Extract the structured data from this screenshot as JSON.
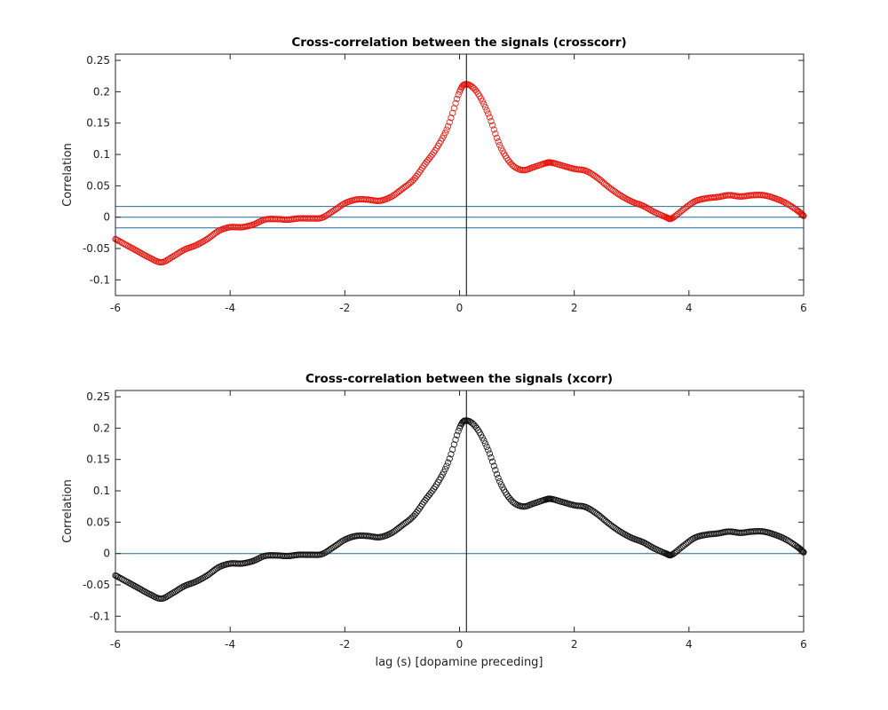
{
  "figure": {
    "background": "#ffffff"
  },
  "chart_data": [
    {
      "type": "scatter",
      "title": "Cross-correlation between the signals (crosscorr)",
      "xlabel": "",
      "ylabel": "Correlation",
      "xlim": [
        -6,
        6
      ],
      "ylim": [
        -0.125,
        0.26
      ],
      "xticks": [
        -6,
        -4,
        -2,
        0,
        2,
        4,
        6
      ],
      "xtick_labels": [
        "-6",
        "-4",
        "-2",
        "0",
        "2",
        "4",
        "6"
      ],
      "yticks": [
        -0.1,
        -0.05,
        0,
        0.05,
        0.1,
        0.15,
        0.2,
        0.25
      ],
      "ytick_labels": [
        "-0.1",
        "-0.05",
        "0",
        "0.05",
        "0.1",
        "0.15",
        "0.2",
        "0.25"
      ],
      "grid": false,
      "marker": "circle-open",
      "marker_color": "#e8140c",
      "vertical_line_x": 0.12,
      "vertical_line_color": "#000000",
      "horizontal_lines": [
        {
          "y": 0.017,
          "color": "#1f6f95"
        },
        {
          "y": 0.0,
          "color": "#1f6f95"
        },
        {
          "y": -0.017,
          "color": "#1f6f95"
        }
      ],
      "x": [
        -6.0,
        -5.8,
        -5.6,
        -5.4,
        -5.2,
        -5.0,
        -4.8,
        -4.6,
        -4.4,
        -4.2,
        -4.0,
        -3.8,
        -3.6,
        -3.4,
        -3.2,
        -3.0,
        -2.8,
        -2.6,
        -2.4,
        -2.2,
        -2.0,
        -1.8,
        -1.6,
        -1.4,
        -1.2,
        -1.0,
        -0.8,
        -0.6,
        -0.4,
        -0.2,
        0.0,
        0.12,
        0.3,
        0.5,
        0.7,
        0.9,
        1.1,
        1.3,
        1.5,
        1.6,
        1.8,
        2.0,
        2.2,
        2.4,
        2.6,
        2.8,
        3.0,
        3.2,
        3.4,
        3.6,
        3.7,
        3.9,
        4.1,
        4.3,
        4.5,
        4.7,
        4.9,
        5.1,
        5.3,
        5.5,
        5.7,
        5.9,
        6.0
      ],
      "y": [
        -0.035,
        -0.045,
        -0.055,
        -0.065,
        -0.072,
        -0.063,
        -0.052,
        -0.045,
        -0.035,
        -0.022,
        -0.016,
        -0.016,
        -0.012,
        -0.004,
        -0.003,
        -0.004,
        -0.002,
        -0.002,
        -0.001,
        0.01,
        0.022,
        0.028,
        0.028,
        0.026,
        0.032,
        0.045,
        0.06,
        0.085,
        0.11,
        0.145,
        0.2,
        0.212,
        0.2,
        0.165,
        0.115,
        0.085,
        0.075,
        0.08,
        0.086,
        0.087,
        0.082,
        0.077,
        0.074,
        0.063,
        0.048,
        0.035,
        0.025,
        0.018,
        0.008,
        0.0,
        -0.002,
        0.012,
        0.025,
        0.03,
        0.032,
        0.035,
        0.033,
        0.035,
        0.035,
        0.03,
        0.022,
        0.01,
        0.002
      ]
    },
    {
      "type": "scatter",
      "title": "Cross-correlation between the signals (xcorr)",
      "xlabel": "lag (s) [dopamine preceding]",
      "ylabel": "Correlation",
      "xlim": [
        -6,
        6
      ],
      "ylim": [
        -0.125,
        0.26
      ],
      "xticks": [
        -6,
        -4,
        -2,
        0,
        2,
        4,
        6
      ],
      "xtick_labels": [
        "-6",
        "-4",
        "-2",
        "0",
        "2",
        "4",
        "6"
      ],
      "yticks": [
        -0.1,
        -0.05,
        0,
        0.05,
        0.1,
        0.15,
        0.2,
        0.25
      ],
      "ytick_labels": [
        "-0.1",
        "-0.05",
        "0",
        "0.05",
        "0.1",
        "0.15",
        "0.2",
        "0.25"
      ],
      "grid": false,
      "marker": "circle-open",
      "marker_color": "#111111",
      "vertical_line_x": 0.12,
      "vertical_line_color": "#000000",
      "horizontal_lines": [
        {
          "y": 0.0,
          "color": "#1f6f95"
        }
      ],
      "x": [
        -6.0,
        -5.8,
        -5.6,
        -5.4,
        -5.2,
        -5.0,
        -4.8,
        -4.6,
        -4.4,
        -4.2,
        -4.0,
        -3.8,
        -3.6,
        -3.4,
        -3.2,
        -3.0,
        -2.8,
        -2.6,
        -2.4,
        -2.2,
        -2.0,
        -1.8,
        -1.6,
        -1.4,
        -1.2,
        -1.0,
        -0.8,
        -0.6,
        -0.4,
        -0.2,
        0.0,
        0.12,
        0.3,
        0.5,
        0.7,
        0.9,
        1.1,
        1.3,
        1.5,
        1.6,
        1.8,
        2.0,
        2.2,
        2.4,
        2.6,
        2.8,
        3.0,
        3.2,
        3.4,
        3.6,
        3.7,
        3.9,
        4.1,
        4.3,
        4.5,
        4.7,
        4.9,
        5.1,
        5.3,
        5.5,
        5.7,
        5.9,
        6.0
      ],
      "y": [
        -0.035,
        -0.045,
        -0.055,
        -0.065,
        -0.072,
        -0.063,
        -0.052,
        -0.045,
        -0.035,
        -0.022,
        -0.016,
        -0.016,
        -0.012,
        -0.004,
        -0.003,
        -0.004,
        -0.002,
        -0.002,
        -0.001,
        0.01,
        0.022,
        0.028,
        0.028,
        0.026,
        0.032,
        0.045,
        0.06,
        0.085,
        0.11,
        0.145,
        0.2,
        0.212,
        0.2,
        0.165,
        0.115,
        0.085,
        0.075,
        0.08,
        0.086,
        0.087,
        0.082,
        0.077,
        0.074,
        0.063,
        0.048,
        0.035,
        0.025,
        0.018,
        0.008,
        0.0,
        -0.002,
        0.012,
        0.025,
        0.03,
        0.032,
        0.035,
        0.033,
        0.035,
        0.035,
        0.03,
        0.022,
        0.01,
        0.002
      ]
    }
  ]
}
